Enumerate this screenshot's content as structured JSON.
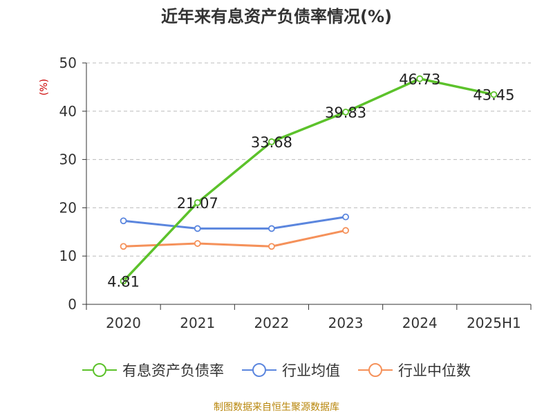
{
  "chart_data": {
    "type": "line",
    "title": "近年来有息资产负债率情况(%)",
    "ylabel": "(%)",
    "categories": [
      "2020",
      "2021",
      "2022",
      "2023",
      "2024",
      "2025H1"
    ],
    "ylim": [
      0,
      50
    ],
    "yticks": [
      0,
      10,
      20,
      30,
      40,
      50
    ],
    "grid": true,
    "legend_position": "bottom",
    "series": [
      {
        "name": "有息资产负债率",
        "color": "#5cc22b",
        "values": [
          4.81,
          21.07,
          33.68,
          39.83,
          46.73,
          43.45
        ],
        "show_labels": true
      },
      {
        "name": "行业均值",
        "color": "#5b86de",
        "values": [
          17.3,
          15.7,
          15.7,
          18.1,
          null,
          null
        ],
        "show_labels": false
      },
      {
        "name": "行业中位数",
        "color": "#f5915a",
        "values": [
          12.0,
          12.6,
          12.0,
          15.3,
          null,
          null
        ],
        "show_labels": false
      }
    ]
  },
  "source": "制图数据来自恒生聚源数据库"
}
